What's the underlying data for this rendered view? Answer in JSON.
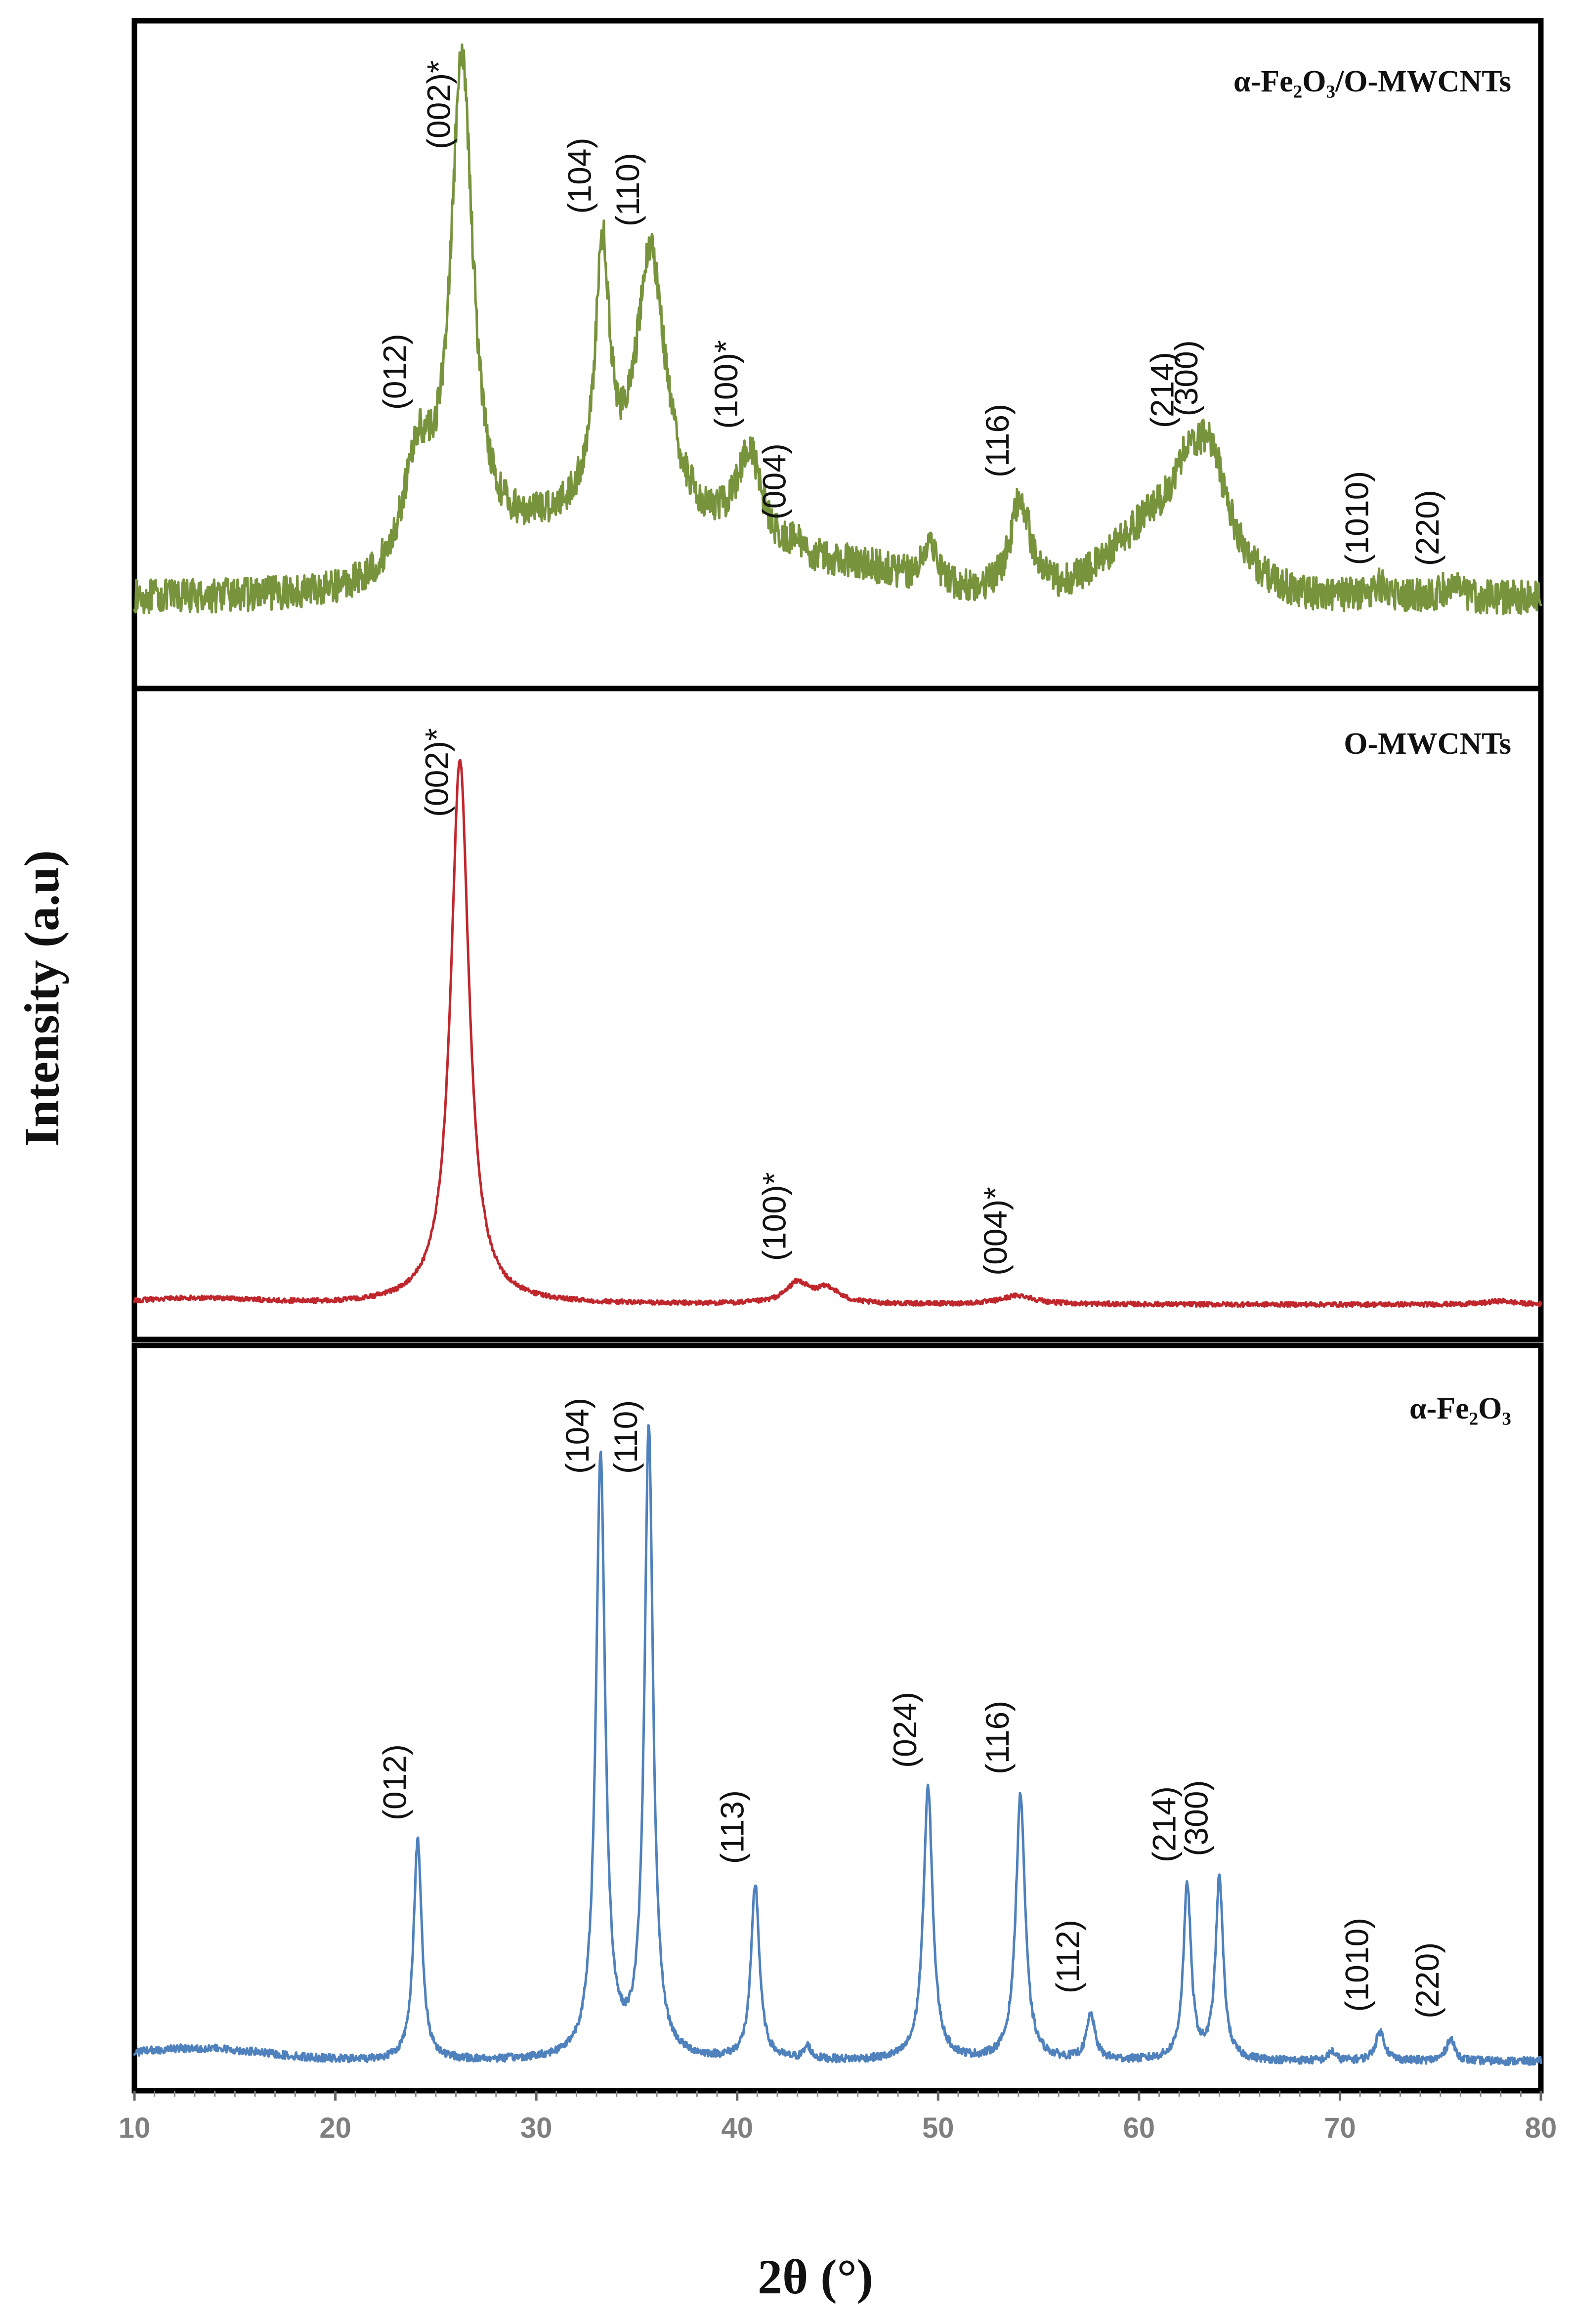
{
  "chart_data": {
    "type": "line",
    "title": "",
    "xlabel": "2θ (°)",
    "ylabel": "Intensity (a.u)",
    "xlim": [
      10,
      80
    ],
    "xticks": [
      10,
      20,
      30,
      40,
      50,
      60,
      70,
      80
    ],
    "y_units": "arbitrary (normalized 0–1 per panel)",
    "panels": [
      {
        "name": "α-Fe₂O₃/O-MWCNTs",
        "color": "#77933c",
        "baseline": 0.06,
        "noise": 0.03,
        "broad_humps": [
          {
            "center": 31.5,
            "height": 0.11,
            "width": 3.5
          },
          {
            "center": 38.0,
            "height": 0.08,
            "width": 3.0
          },
          {
            "center": 45.5,
            "height": 0.05,
            "width": 3.0
          },
          {
            "center": 61.5,
            "height": 0.14,
            "width": 2.5
          }
        ],
        "peaks": [
          {
            "two_theta": 24.1,
            "intensity": 0.2,
            "width": 0.9,
            "label": "(012)"
          },
          {
            "two_theta": 26.3,
            "intensity": 0.88,
            "width": 0.7,
            "label": "(002)*"
          },
          {
            "two_theta": 33.3,
            "intensity": 0.45,
            "width": 0.45,
            "label": "(104)"
          },
          {
            "two_theta": 35.7,
            "intensity": 0.48,
            "width": 0.9,
            "label": "(110)"
          },
          {
            "two_theta": 40.6,
            "intensity": 0.17,
            "width": 0.8,
            "label": "(100)*"
          },
          {
            "two_theta": 43.0,
            "intensity": 0.02,
            "width": 0.5,
            "label": "(004)"
          },
          {
            "two_theta": 49.6,
            "intensity": 0.08,
            "width": 0.4,
            "label": ""
          },
          {
            "two_theta": 54.1,
            "intensity": 0.17,
            "width": 0.6,
            "label": "(116)"
          },
          {
            "two_theta": 62.3,
            "intensity": 0.06,
            "width": 0.6,
            "label": "(214)"
          },
          {
            "two_theta": 63.5,
            "intensity": 0.17,
            "width": 1.0,
            "label": "(300)"
          },
          {
            "two_theta": 72.0,
            "intensity": 0.02,
            "width": 0.5,
            "label": "(1010)"
          },
          {
            "two_theta": 75.5,
            "intensity": 0.02,
            "width": 0.5,
            "label": "(220)"
          }
        ]
      },
      {
        "name": "O-MWCNTs",
        "color": "#c0272d",
        "baseline": 0.03,
        "noise": 0.004,
        "broad_humps": [
          {
            "center": 13.0,
            "height": 0.01,
            "width": 3.0
          }
        ],
        "peaks": [
          {
            "two_theta": 26.2,
            "intensity": 0.93,
            "width": 0.55,
            "label": "(002)*"
          },
          {
            "two_theta": 43.0,
            "intensity": 0.035,
            "width": 0.7,
            "label": "(100)*"
          },
          {
            "two_theta": 44.5,
            "intensity": 0.025,
            "width": 0.7,
            "label": ""
          },
          {
            "two_theta": 54.0,
            "intensity": 0.015,
            "width": 1.0,
            "label": "(004)*"
          },
          {
            "two_theta": 78.0,
            "intensity": 0.006,
            "width": 0.8,
            "label": ""
          }
        ]
      },
      {
        "name": "α-Fe₂O₃",
        "color": "#4f81bd",
        "baseline": 0.03,
        "noise": 0.006,
        "broad_humps": [
          {
            "center": 13.0,
            "height": 0.02,
            "width": 3.5
          }
        ],
        "peaks": [
          {
            "two_theta": 24.1,
            "intensity": 0.34,
            "width": 0.25,
            "label": "(012)"
          },
          {
            "two_theta": 33.2,
            "intensity": 0.93,
            "width": 0.28,
            "label": "(104)"
          },
          {
            "two_theta": 35.6,
            "intensity": 0.97,
            "width": 0.26,
            "label": "(110)"
          },
          {
            "two_theta": 40.9,
            "intensity": 0.27,
            "width": 0.25,
            "label": "(113)"
          },
          {
            "two_theta": 43.5,
            "intensity": 0.02,
            "width": 0.2,
            "label": ""
          },
          {
            "two_theta": 49.5,
            "intensity": 0.42,
            "width": 0.28,
            "label": "(024)"
          },
          {
            "two_theta": 54.1,
            "intensity": 0.41,
            "width": 0.28,
            "label": "(116)"
          },
          {
            "two_theta": 57.6,
            "intensity": 0.07,
            "width": 0.25,
            "label": "(112)"
          },
          {
            "two_theta": 62.4,
            "intensity": 0.27,
            "width": 0.23,
            "label": "(214)"
          },
          {
            "two_theta": 64.0,
            "intensity": 0.28,
            "width": 0.23,
            "label": "(300)"
          },
          {
            "two_theta": 69.6,
            "intensity": 0.015,
            "width": 0.2,
            "label": ""
          },
          {
            "two_theta": 72.0,
            "intensity": 0.045,
            "width": 0.28,
            "label": "(1010)"
          },
          {
            "two_theta": 75.5,
            "intensity": 0.035,
            "width": 0.25,
            "label": "(220)"
          }
        ]
      }
    ]
  }
}
